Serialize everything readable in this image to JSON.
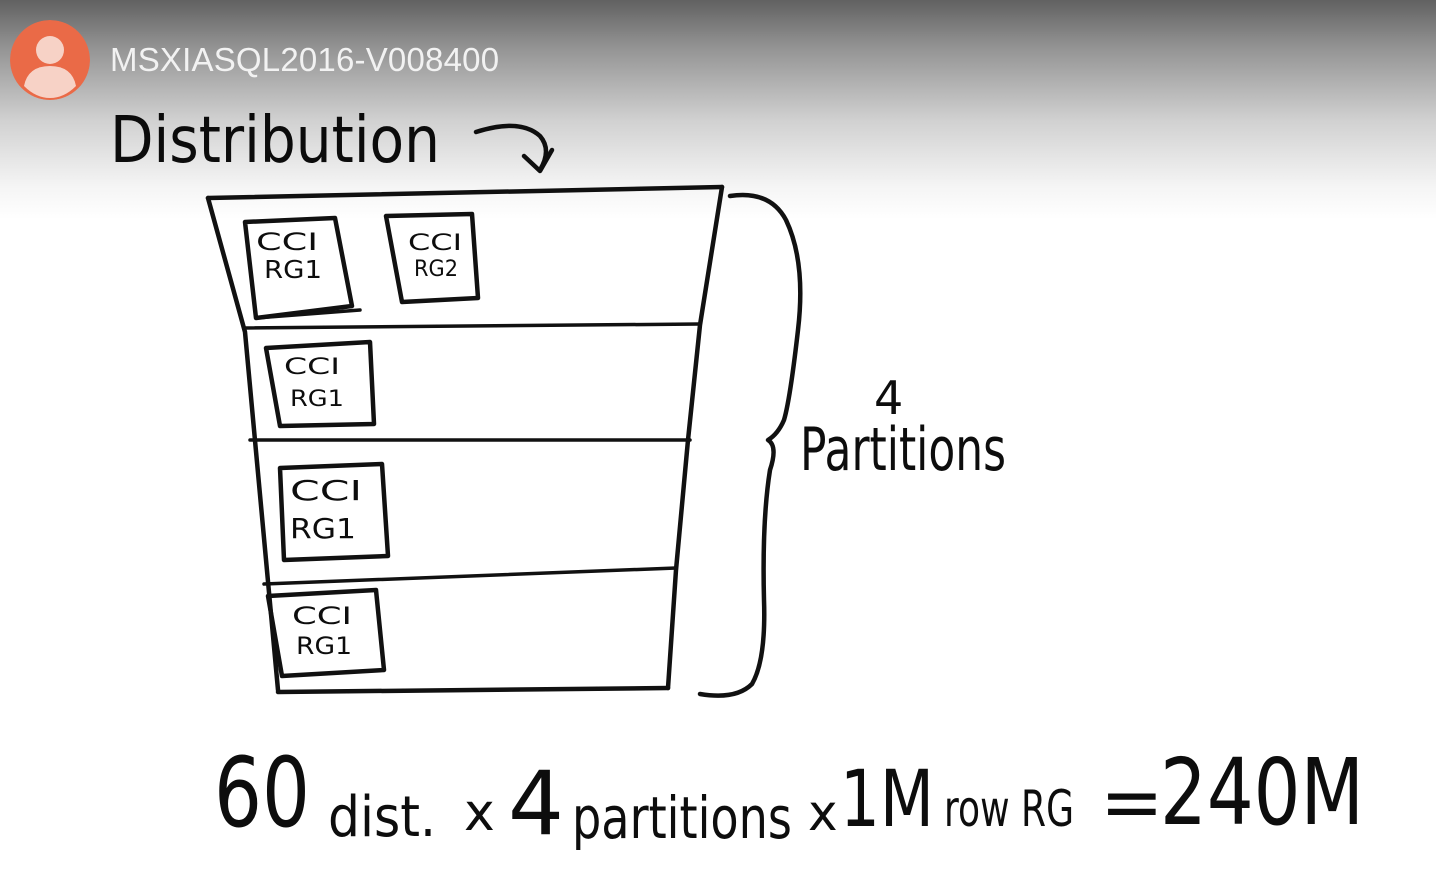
{
  "header": {
    "channel_avatar_icon": "person-avatar-icon",
    "avatar_color": "#ea6a47",
    "title": "MSXIASQL2016-V008400"
  },
  "whiteboard": {
    "heading": "Distribution",
    "arrow_icon": "curved-arrow-icon",
    "partition_count": "4",
    "partition_label": "Partitions",
    "partitions": [
      {
        "row_groups": [
          {
            "line1": "CCI",
            "line2": "RG1"
          },
          {
            "line1": "CCI",
            "line2": "RG2"
          }
        ]
      },
      {
        "row_groups": [
          {
            "line1": "CCI",
            "line2": "RG1"
          }
        ]
      },
      {
        "row_groups": [
          {
            "line1": "CCI",
            "line2": "RG1"
          }
        ]
      },
      {
        "row_groups": [
          {
            "line1": "CCI",
            "line2": "RG1"
          }
        ]
      }
    ],
    "formula": {
      "distributions_value": "60",
      "distributions_label": "dist.",
      "times1": "x",
      "partitions_value": "4",
      "partitions_label": "partitions",
      "times2": "x",
      "rows_value": "1M",
      "rows_label": "row RG",
      "equals": "=",
      "result": "240M"
    }
  }
}
